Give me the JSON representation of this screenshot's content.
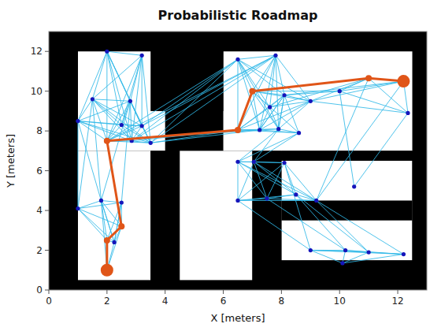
{
  "chart_data": {
    "type": "network",
    "title": "Probabilistic Roadmap",
    "x_label": "X [meters]",
    "y_label": "Y [meters]",
    "xlim": [
      0,
      13
    ],
    "ylim": [
      0,
      13
    ],
    "xticks": [
      0,
      2,
      4,
      6,
      8,
      10,
      12
    ],
    "yticks": [
      0,
      2,
      4,
      6,
      8,
      10,
      12
    ],
    "free_areas": {
      "color": "#ffffff",
      "rects": [
        [
          1.0,
          4.0,
          7.0,
          13.0
        ],
        [
          6.0,
          13.0,
          7.0,
          13.0
        ],
        [
          1.0,
          3.5,
          0.0,
          7.0
        ],
        [
          4.5,
          7.0,
          0.0,
          7.0
        ],
        [
          8.0,
          12.5,
          1.5,
          6.5
        ]
      ]
    },
    "obstacles": {
      "color": "#000000",
      "rects": [
        [
          3.5,
          6.0,
          9.0,
          13.0
        ],
        [
          3.5,
          4.5,
          0.0,
          7.0
        ],
        [
          7.0,
          8.0,
          0.0,
          7.0
        ],
        [
          8.0,
          12.5,
          3.5,
          4.5
        ],
        [
          0.0,
          1.0,
          0.0,
          13.0
        ],
        [
          12.5,
          13.0,
          0.0,
          13.0
        ],
        [
          0.0,
          13.0,
          12.0,
          13.0
        ],
        [
          0.0,
          13.0,
          0.0,
          0.5
        ],
        [
          8.0,
          12.5,
          6.5,
          7.0
        ]
      ]
    },
    "nodes": {
      "color": "#1515bb",
      "points": [
        [
          2.0,
          12.0
        ],
        [
          3.2,
          11.8
        ],
        [
          1.5,
          9.6
        ],
        [
          2.8,
          9.5
        ],
        [
          1.0,
          8.5
        ],
        [
          2.5,
          8.3
        ],
        [
          3.2,
          8.25
        ],
        [
          2.0,
          7.5
        ],
        [
          2.85,
          7.5
        ],
        [
          3.5,
          7.4
        ],
        [
          1.8,
          4.5
        ],
        [
          1.0,
          4.1
        ],
        [
          2.5,
          4.4
        ],
        [
          2.5,
          3.2
        ],
        [
          2.0,
          2.5
        ],
        [
          2.25,
          2.4
        ],
        [
          2.0,
          1.0
        ],
        [
          6.5,
          11.6
        ],
        [
          7.8,
          11.8
        ],
        [
          7.0,
          10.0
        ],
        [
          8.1,
          9.8
        ],
        [
          9.0,
          9.5
        ],
        [
          7.6,
          9.2
        ],
        [
          6.5,
          8.05
        ],
        [
          7.25,
          8.05
        ],
        [
          7.9,
          8.1
        ],
        [
          8.6,
          7.9
        ],
        [
          6.5,
          6.45
        ],
        [
          7.05,
          6.45
        ],
        [
          8.1,
          6.4
        ],
        [
          6.5,
          4.5
        ],
        [
          7.5,
          4.6
        ],
        [
          8.5,
          4.8
        ],
        [
          9.2,
          4.5
        ],
        [
          10.5,
          5.2
        ],
        [
          9.0,
          2.0
        ],
        [
          10.2,
          2.0
        ],
        [
          11.0,
          1.9
        ],
        [
          12.2,
          1.8
        ],
        [
          10.1,
          1.35
        ],
        [
          11.0,
          10.65
        ],
        [
          12.2,
          10.5
        ],
        [
          10.0,
          10.0
        ],
        [
          12.35,
          8.9
        ]
      ]
    },
    "edges": {
      "color": "#30b8e8",
      "pairs": [
        [
          0,
          1
        ],
        [
          0,
          2
        ],
        [
          0,
          3
        ],
        [
          0,
          4
        ],
        [
          0,
          5
        ],
        [
          0,
          6
        ],
        [
          0,
          7
        ],
        [
          0,
          8
        ],
        [
          0,
          9
        ],
        [
          1,
          2
        ],
        [
          1,
          3
        ],
        [
          1,
          5
        ],
        [
          1,
          6
        ],
        [
          1,
          7
        ],
        [
          1,
          8
        ],
        [
          1,
          9
        ],
        [
          2,
          3
        ],
        [
          2,
          4
        ],
        [
          2,
          5
        ],
        [
          2,
          6
        ],
        [
          2,
          7
        ],
        [
          2,
          8
        ],
        [
          2,
          9
        ],
        [
          3,
          4
        ],
        [
          3,
          5
        ],
        [
          3,
          6
        ],
        [
          3,
          7
        ],
        [
          3,
          8
        ],
        [
          3,
          9
        ],
        [
          4,
          5
        ],
        [
          4,
          6
        ],
        [
          4,
          7
        ],
        [
          4,
          8
        ],
        [
          4,
          9
        ],
        [
          5,
          6
        ],
        [
          5,
          7
        ],
        [
          5,
          8
        ],
        [
          5,
          9
        ],
        [
          6,
          7
        ],
        [
          6,
          8
        ],
        [
          6,
          9
        ],
        [
          7,
          8
        ],
        [
          7,
          9
        ],
        [
          8,
          9
        ],
        [
          10,
          11
        ],
        [
          10,
          12
        ],
        [
          10,
          13
        ],
        [
          10,
          14
        ],
        [
          10,
          15
        ],
        [
          11,
          12
        ],
        [
          11,
          13
        ],
        [
          11,
          14
        ],
        [
          11,
          15
        ],
        [
          12,
          13
        ],
        [
          12,
          14
        ],
        [
          12,
          15
        ],
        [
          13,
          14
        ],
        [
          13,
          15
        ],
        [
          14,
          15
        ],
        [
          14,
          16
        ],
        [
          15,
          16
        ],
        [
          13,
          16
        ],
        [
          17,
          18
        ],
        [
          17,
          19
        ],
        [
          17,
          20
        ],
        [
          17,
          21
        ],
        [
          17,
          22
        ],
        [
          17,
          23
        ],
        [
          17,
          24
        ],
        [
          17,
          25
        ],
        [
          18,
          19
        ],
        [
          18,
          20
        ],
        [
          18,
          21
        ],
        [
          18,
          22
        ],
        [
          18,
          23
        ],
        [
          18,
          24
        ],
        [
          18,
          25
        ],
        [
          19,
          20
        ],
        [
          19,
          21
        ],
        [
          19,
          22
        ],
        [
          19,
          23
        ],
        [
          19,
          24
        ],
        [
          19,
          25
        ],
        [
          20,
          21
        ],
        [
          20,
          22
        ],
        [
          20,
          23
        ],
        [
          20,
          24
        ],
        [
          20,
          25
        ],
        [
          21,
          22
        ],
        [
          21,
          23
        ],
        [
          21,
          24
        ],
        [
          21,
          25
        ],
        [
          22,
          23
        ],
        [
          22,
          24
        ],
        [
          22,
          25
        ],
        [
          23,
          24
        ],
        [
          23,
          25
        ],
        [
          24,
          25
        ],
        [
          27,
          28
        ],
        [
          27,
          29
        ],
        [
          27,
          30
        ],
        [
          27,
          31
        ],
        [
          27,
          32
        ],
        [
          27,
          33
        ],
        [
          28,
          29
        ],
        [
          28,
          30
        ],
        [
          28,
          31
        ],
        [
          28,
          32
        ],
        [
          28,
          33
        ],
        [
          29,
          30
        ],
        [
          29,
          31
        ],
        [
          29,
          32
        ],
        [
          29,
          33
        ],
        [
          30,
          31
        ],
        [
          30,
          32
        ],
        [
          30,
          33
        ],
        [
          31,
          32
        ],
        [
          31,
          33
        ],
        [
          32,
          33
        ],
        [
          35,
          36
        ],
        [
          35,
          37
        ],
        [
          35,
          38
        ],
        [
          35,
          39
        ],
        [
          36,
          37
        ],
        [
          36,
          38
        ],
        [
          36,
          39
        ],
        [
          37,
          38
        ],
        [
          37,
          39
        ],
        [
          38,
          39
        ],
        [
          40,
          41
        ],
        [
          40,
          42
        ],
        [
          40,
          43
        ],
        [
          41,
          42
        ],
        [
          41,
          43
        ],
        [
          42,
          43
        ],
        [
          9,
          23
        ],
        [
          9,
          24
        ],
        [
          8,
          23
        ],
        [
          7,
          24
        ],
        [
          7,
          23
        ],
        [
          25,
          26
        ],
        [
          24,
          26
        ],
        [
          23,
          26
        ],
        [
          26,
          27
        ],
        [
          26,
          28
        ],
        [
          25,
          28
        ],
        [
          25,
          27
        ],
        [
          33,
          40
        ],
        [
          33,
          41
        ],
        [
          34,
          43
        ],
        [
          34,
          42
        ],
        [
          19,
          40
        ],
        [
          19,
          42
        ],
        [
          20,
          41
        ],
        [
          20,
          42
        ],
        [
          21,
          40
        ],
        [
          21,
          41
        ],
        [
          21,
          43
        ],
        [
          22,
          40
        ],
        [
          2,
          10
        ],
        [
          2,
          11
        ],
        [
          3,
          10
        ],
        [
          3,
          12
        ],
        [
          4,
          10
        ],
        [
          4,
          11
        ],
        [
          15,
          10
        ],
        [
          15,
          12
        ],
        [
          16,
          10
        ],
        [
          6,
          17
        ],
        [
          6,
          18
        ],
        [
          7,
          17
        ],
        [
          7,
          18
        ],
        [
          8,
          17
        ],
        [
          8,
          18
        ],
        [
          9,
          17
        ],
        [
          9,
          18
        ],
        [
          29,
          35
        ],
        [
          30,
          35
        ],
        [
          31,
          36
        ],
        [
          32,
          36
        ],
        [
          32,
          37
        ],
        [
          33,
          37
        ],
        [
          33,
          38
        ],
        [
          26,
          19
        ],
        [
          26,
          20
        ],
        [
          25,
          20
        ],
        [
          24,
          20
        ]
      ]
    },
    "path": {
      "color": "#e05518",
      "points": [
        [
          2.0,
          1.0
        ],
        [
          2.0,
          2.5
        ],
        [
          2.5,
          3.2
        ],
        [
          2.0,
          7.5
        ],
        [
          6.5,
          8.05
        ],
        [
          7.0,
          10.0
        ],
        [
          11.0,
          10.65
        ],
        [
          12.2,
          10.5
        ]
      ]
    },
    "start": {
      "color": "#e05518",
      "point": [
        2.0,
        1.0
      ]
    },
    "end": {
      "color": "#e05518",
      "point": [
        12.2,
        10.5
      ]
    }
  }
}
